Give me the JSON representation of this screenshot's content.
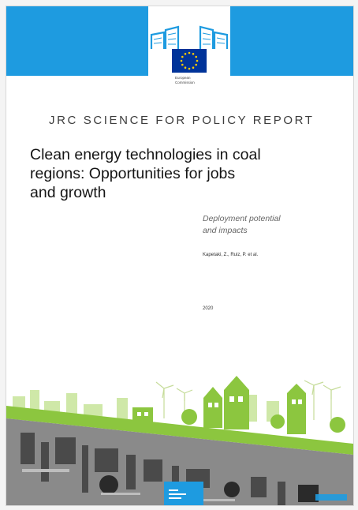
{
  "logo": {
    "org_line1": "European",
    "org_line2": "Commission"
  },
  "report_type": "JRC SCIENCE FOR POLICY REPORT",
  "title_lines": [
    "Clean energy technologies in coal",
    "regions: Opportunities for jobs",
    "and growth"
  ],
  "subtitle_lines": [
    "Deployment potential",
    "and impacts"
  ],
  "authors": "Kapetaki, Z., Ruiz, P. et al.",
  "year": "2020",
  "colors": {
    "band_blue": "#1e9be0",
    "eu_flag_blue": "#003399",
    "eu_flag_star": "#ffcc00",
    "grass_green": "#8cc63f"
  }
}
